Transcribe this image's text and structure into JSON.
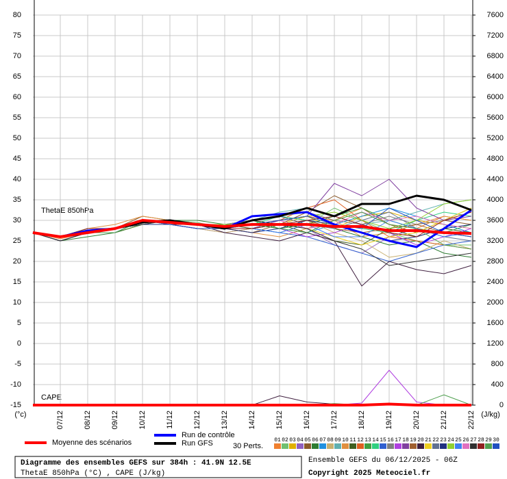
{
  "chart_data": {
    "type": "line",
    "title": "Diagramme des ensembles GEFS sur 384h : 41.9N 12.5E",
    "subtitle": "ThetaE 850hPa (°C) , CAPE (J/kg)",
    "run_info": "Ensemble GEFS du 06/12/2025 - 06Z",
    "copyright": "Copyright 2025 Meteociel.fr",
    "ylabel": "(°c)",
    "y2label": "(J/kg)",
    "annotation_theta": "ThetaE 850hPa",
    "annotation_cape": "CAPE",
    "perturbations_label": "30 Perts.",
    "grid": true,
    "categories": [
      null,
      "07/12",
      "08/12",
      "09/12",
      "10/12",
      "11/12",
      "12/12",
      "13/12",
      "14/12",
      "15/12",
      "16/12",
      "17/12",
      "18/12",
      "19/12",
      "20/12",
      "21/12",
      "22/12"
    ],
    "ylim": [
      -15,
      80
    ],
    "yticks": [
      -15,
      -10,
      -5,
      0,
      5,
      10,
      15,
      20,
      25,
      30,
      35,
      40,
      45,
      50,
      55,
      60,
      65,
      70,
      75,
      80
    ],
    "y2lim": [
      0,
      7600
    ],
    "y2ticks": [
      0,
      400,
      800,
      1200,
      1600,
      2000,
      2400,
      2800,
      3200,
      3600,
      4000,
      4400,
      4800,
      5200,
      5600,
      6000,
      6400,
      6800,
      7200,
      7600
    ],
    "series": [
      {
        "name": "01",
        "color": "#f08030",
        "values": [
          27,
          25.5,
          27,
          28,
          30,
          30,
          29,
          28,
          29,
          30,
          31,
          30,
          33,
          29,
          28,
          31,
          30
        ]
      },
      {
        "name": "02",
        "color": "#70c070",
        "values": [
          27,
          26,
          28,
          28,
          29.5,
          30,
          29.5,
          28,
          28,
          27,
          29,
          33,
          30,
          27,
          25,
          24,
          24
        ]
      },
      {
        "name": "03",
        "color": "#e0b000",
        "values": [
          27,
          26,
          27,
          27,
          29,
          29,
          29,
          29,
          30,
          29,
          31,
          28,
          31,
          32,
          30,
          29,
          28
        ]
      },
      {
        "name": "04",
        "color": "#9060c0",
        "values": [
          27,
          25,
          27,
          28,
          30,
          29,
          28,
          27,
          28,
          30,
          28,
          24,
          22,
          26,
          28,
          27,
          26
        ]
      },
      {
        "name": "05",
        "color": "#8b5a2b",
        "values": [
          27,
          26,
          28,
          28,
          31,
          30,
          29,
          28,
          27,
          29,
          32,
          36,
          33,
          29,
          27,
          30,
          29
        ]
      },
      {
        "name": "06",
        "color": "#2e7d32",
        "values": [
          27,
          25,
          26,
          27,
          29,
          30,
          30,
          29,
          30,
          31,
          30,
          28,
          26,
          24,
          25,
          22,
          21
        ]
      },
      {
        "name": "07",
        "color": "#2090e0",
        "values": [
          27,
          26,
          27,
          28,
          30,
          29,
          29,
          28,
          29,
          28,
          27,
          29,
          31,
          33,
          31,
          29,
          27
        ]
      },
      {
        "name": "08",
        "color": "#c8b070",
        "values": [
          27,
          26,
          27,
          27,
          30,
          29,
          28,
          27,
          28,
          29,
          30,
          27,
          25,
          21,
          22,
          25,
          23
        ]
      },
      {
        "name": "09",
        "color": "#60b0b0",
        "values": [
          27,
          25,
          27,
          28,
          29,
          30,
          29,
          29,
          30,
          32,
          33,
          31,
          29,
          30,
          32,
          34,
          35
        ]
      },
      {
        "name": "10",
        "color": "#e09040",
        "values": [
          27,
          26,
          28,
          29,
          31,
          30,
          29,
          28,
          27,
          26,
          28,
          30,
          26,
          27,
          29,
          31,
          30
        ]
      },
      {
        "name": "11",
        "color": "#406020",
        "values": [
          27,
          26,
          27,
          28,
          30,
          30,
          29,
          29,
          28,
          29,
          27,
          25,
          24,
          28,
          26,
          28,
          27
        ]
      },
      {
        "name": "12",
        "color": "#e06020",
        "values": [
          27,
          25,
          27,
          28,
          30,
          29,
          29,
          28,
          29,
          30,
          33,
          35,
          30,
          26,
          25,
          24,
          23
        ]
      },
      {
        "name": "13",
        "color": "#40a040",
        "values": [
          27,
          26,
          27,
          28,
          29,
          29,
          28,
          28,
          30,
          28,
          29,
          31,
          33,
          30,
          28,
          27,
          29
        ]
      },
      {
        "name": "14",
        "color": "#30d080",
        "values": [
          27,
          26,
          28,
          28,
          30,
          30,
          29,
          28,
          29,
          31,
          30,
          29,
          28,
          27,
          30,
          32,
          31
        ]
      },
      {
        "name": "15",
        "color": "#3060d0",
        "values": [
          27,
          25,
          27,
          27,
          30,
          30,
          29,
          28,
          28,
          27,
          26,
          24,
          22,
          20,
          22,
          24,
          25
        ]
      },
      {
        "name": "16",
        "color": "#808080",
        "values": [
          27,
          26,
          27,
          28,
          29,
          30,
          29,
          29,
          30,
          31,
          32,
          30,
          29,
          31,
          29,
          30,
          33
        ]
      },
      {
        "name": "17",
        "color": "#b040e0",
        "values": [
          27,
          26,
          27,
          28,
          30,
          29,
          28,
          28,
          29,
          28,
          26,
          27,
          29,
          27,
          24,
          26,
          28
        ],
        "cape": [
          0,
          0,
          0,
          0,
          0,
          0,
          0,
          0,
          0,
          0,
          0,
          0,
          40,
          680,
          60,
          0,
          0
        ]
      },
      {
        "name": "18",
        "color": "#8040a0",
        "values": [
          27,
          26,
          28,
          28,
          30,
          30,
          29,
          28,
          28,
          30,
          31,
          39,
          36,
          40,
          33,
          30,
          31
        ]
      },
      {
        "name": "19",
        "color": "#a06030",
        "values": [
          27,
          25,
          27,
          28,
          29,
          29,
          29,
          28,
          29,
          28,
          30,
          28,
          27,
          28,
          29,
          27,
          26
        ]
      },
      {
        "name": "20",
        "color": "#402040",
        "values": [
          27,
          26,
          27,
          28,
          30,
          30,
          29,
          27,
          26,
          25,
          27,
          25,
          14,
          20,
          18,
          17,
          19
        ],
        "cape": [
          0,
          0,
          0,
          0,
          0,
          0,
          0,
          0,
          0,
          180,
          60,
          20,
          0,
          0,
          20,
          0,
          0
        ]
      },
      {
        "name": "21",
        "color": "#f0d020",
        "values": [
          27,
          26,
          27,
          28,
          30,
          29,
          29,
          28,
          29,
          29,
          28,
          26,
          24,
          26,
          27,
          30,
          33
        ]
      },
      {
        "name": "22",
        "color": "#607090",
        "values": [
          27,
          26,
          27,
          27,
          30,
          30,
          29,
          28,
          30,
          31,
          29,
          28,
          30,
          32,
          28,
          26,
          25
        ]
      },
      {
        "name": "23",
        "color": "#203080",
        "values": [
          27,
          25,
          27,
          28,
          29,
          29,
          28,
          28,
          27,
          28,
          30,
          29,
          27,
          25,
          26,
          28,
          29
        ]
      },
      {
        "name": "24",
        "color": "#90d030",
        "values": [
          27,
          26,
          28,
          28,
          30,
          30,
          29,
          29,
          29,
          30,
          31,
          32,
          30,
          28,
          30,
          34,
          35
        ]
      },
      {
        "name": "25",
        "color": "#4080f0",
        "values": [
          27,
          26,
          27,
          28,
          30,
          29,
          29,
          28,
          28,
          27,
          29,
          26,
          26,
          30,
          28,
          26,
          27
        ]
      },
      {
        "name": "26",
        "color": "#e070c0",
        "values": [
          27,
          26,
          27,
          28,
          30,
          30,
          29,
          28,
          29,
          30,
          28,
          29,
          32,
          30,
          31,
          29,
          28
        ]
      },
      {
        "name": "27",
        "color": "#303030",
        "values": [
          27,
          25,
          27,
          28,
          29,
          30,
          29,
          28,
          30,
          29,
          28,
          25,
          23,
          19,
          20,
          21,
          22
        ]
      },
      {
        "name": "28",
        "color": "#902020",
        "values": [
          27,
          26,
          28,
          28,
          30,
          29,
          29,
          28,
          28,
          29,
          30,
          31,
          29,
          27,
          26,
          30,
          32
        ]
      },
      {
        "name": "29",
        "color": "#50a050",
        "values": [
          27,
          26,
          27,
          27,
          30,
          30,
          29,
          28,
          29,
          28,
          27,
          30,
          32,
          29,
          28,
          24,
          23
        ],
        "cape": [
          0,
          0,
          0,
          0,
          0,
          0,
          0,
          0,
          0,
          0,
          0,
          30,
          0,
          0,
          0,
          200,
          0
        ]
      },
      {
        "name": "30",
        "color": "#2050c0",
        "values": [
          27,
          26,
          27,
          28,
          30,
          29,
          28,
          28,
          29,
          30,
          31,
          29,
          28,
          33,
          30,
          27,
          26
        ]
      },
      {
        "name": "Run de contrôle",
        "color": "#0000ff",
        "width": 3,
        "values": [
          27,
          26,
          27.5,
          28,
          30,
          29.5,
          29,
          28,
          31,
          31.5,
          32,
          29,
          27,
          25,
          23.5,
          28,
          32.5
        ]
      },
      {
        "name": "Run GFS",
        "color": "#000000",
        "width": 3,
        "values": [
          27,
          26,
          27,
          28,
          29.5,
          30,
          29,
          28,
          30,
          31,
          33,
          31,
          34,
          34,
          36,
          35,
          32.5
        ]
      },
      {
        "name": "Moyenne des scénarios",
        "color": "#ff0000",
        "width": 4,
        "values": [
          27,
          26,
          27,
          28,
          30,
          29.5,
          29,
          28.5,
          29,
          29,
          29,
          28.5,
          28.5,
          27.5,
          27.5,
          27,
          26.8
        ],
        "cape": [
          0,
          0,
          0,
          0,
          0,
          0,
          0,
          0,
          0,
          0,
          0,
          0,
          0,
          20,
          0,
          0,
          0
        ]
      }
    ]
  }
}
